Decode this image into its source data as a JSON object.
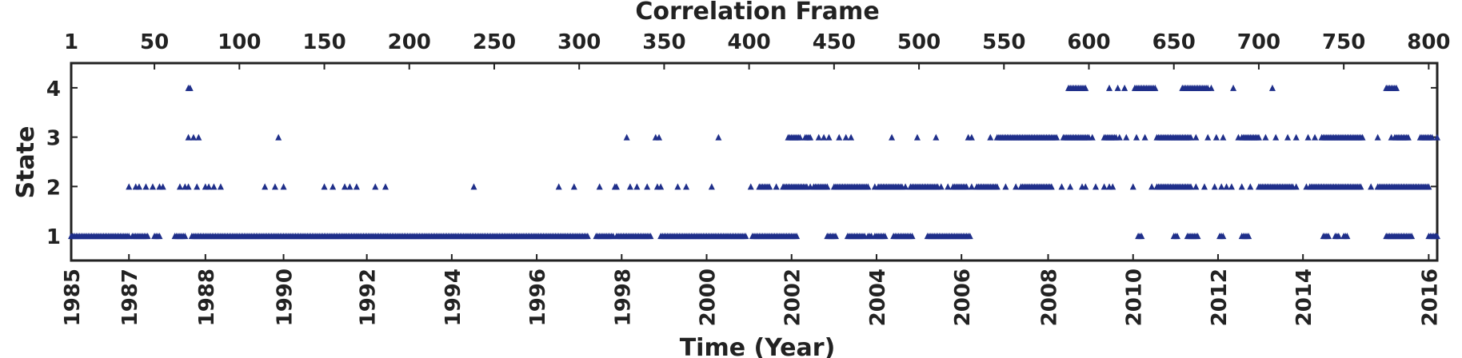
{
  "chart_data": {
    "type": "scatter",
    "xlabel": "Time (Year)",
    "ylabel": "State",
    "x2label": "Correlation Frame",
    "xlim": [
      1,
      805
    ],
    "ylim": [
      0.5,
      4.5
    ],
    "grid": false,
    "marker": "triangle",
    "marker_color": "#1f2f8a",
    "bottom_ticks": [
      {
        "frame": 1,
        "label": "1985"
      },
      {
        "frame": 35,
        "label": "1987"
      },
      {
        "frame": 80,
        "label": "1988"
      },
      {
        "frame": 126,
        "label": "1990"
      },
      {
        "frame": 175,
        "label": "1992"
      },
      {
        "frame": 225,
        "label": "1994"
      },
      {
        "frame": 275,
        "label": "1996"
      },
      {
        "frame": 325,
        "label": "1998"
      },
      {
        "frame": 375,
        "label": "2000"
      },
      {
        "frame": 425,
        "label": "2002"
      },
      {
        "frame": 475,
        "label": "2004"
      },
      {
        "frame": 525,
        "label": "2006"
      },
      {
        "frame": 576,
        "label": "2008"
      },
      {
        "frame": 626,
        "label": "2010"
      },
      {
        "frame": 676,
        "label": "2012"
      },
      {
        "frame": 726,
        "label": "2014"
      },
      {
        "frame": 800,
        "label": "2016"
      }
    ],
    "top_ticks": [
      1,
      50,
      100,
      150,
      200,
      250,
      300,
      350,
      400,
      450,
      500,
      550,
      600,
      650,
      700,
      750,
      800
    ],
    "y_ticks": [
      1,
      2,
      3,
      4
    ],
    "series": [
      {
        "state_1_ranges": [
          [
            1,
            35
          ],
          [
            37,
            46
          ],
          [
            50,
            53
          ],
          [
            62,
            68
          ],
          [
            72,
            76
          ],
          [
            77,
            130
          ],
          [
            130,
            200
          ],
          [
            200,
            305
          ],
          [
            310,
            320
          ],
          [
            322,
            342
          ],
          [
            348,
            398
          ],
          [
            402,
            428
          ],
          [
            446,
            451
          ],
          [
            458,
            468
          ],
          [
            470,
            472
          ],
          [
            474,
            480
          ],
          [
            485,
            496
          ],
          [
            505,
            524
          ],
          [
            522,
            530
          ],
          [
            629,
            631
          ],
          [
            650,
            652
          ],
          [
            658,
            664
          ],
          [
            677,
            679
          ],
          [
            690,
            694
          ],
          [
            738,
            741
          ],
          [
            745,
            747
          ],
          [
            750,
            752
          ],
          [
            775,
            777
          ],
          [
            777,
            790
          ],
          [
            800,
            805
          ]
        ],
        "state_2_points": [
          35,
          39,
          41,
          45,
          49,
          53,
          55,
          65,
          68,
          70,
          75,
          80,
          82,
          85,
          89,
          115,
          121,
          126,
          150,
          155,
          162,
          165,
          169,
          180,
          186,
          238,
          288,
          297,
          312,
          321,
          322,
          330,
          334,
          340,
          346,
          348,
          358,
          363,
          378,
          401,
          410,
          416,
          420,
          425,
          430,
          436,
          439,
          442,
          446,
          458,
          470,
          474,
          478,
          485,
          492,
          495,
          499,
          510,
          513,
          517,
          521,
          528,
          531,
          534,
          540,
          545,
          551,
          557,
          562,
          566,
          571,
          574,
          584,
          589,
          596,
          598,
          604,
          609,
          612,
          614,
          626,
          637,
          643,
          649,
          655,
          659,
          663,
          668,
          674,
          678,
          681,
          684,
          690,
          695,
          701,
          707,
          712,
          718,
          722,
          728,
          733,
          737,
          741,
          749,
          755,
          760,
          766,
          774,
          778,
          786,
          790,
          795,
          800
        ],
        "state_2_ranges": [
          [
            406,
            412
          ],
          [
            420,
            434
          ],
          [
            438,
            445
          ],
          [
            450,
            470
          ],
          [
            476,
            490
          ],
          [
            496,
            511
          ],
          [
            520,
            528
          ],
          [
            534,
            546
          ],
          [
            560,
            578
          ],
          [
            640,
            660
          ],
          [
            700,
            720
          ],
          [
            730,
            760
          ],
          [
            770,
            800
          ]
        ],
        "state_3_points": [
          70,
          73,
          76,
          123,
          328,
          345,
          347,
          382,
          441,
          444,
          447,
          453,
          457,
          460,
          484,
          499,
          510,
          529,
          531,
          542,
          549,
          553,
          560,
          566,
          570,
          575,
          581,
          588,
          590,
          594,
          598,
          602,
          609,
          614,
          618,
          622,
          628,
          633,
          640,
          644,
          652,
          657,
          663,
          670,
          675,
          679,
          688,
          694,
          700,
          704,
          710,
          717,
          722,
          729,
          733,
          742,
          748,
          753,
          761,
          770,
          778,
          784,
          795,
          800,
          805
        ],
        "state_3_ranges": [
          [
            423,
            430
          ],
          [
            433,
            436
          ],
          [
            546,
            580
          ],
          [
            585,
            600
          ],
          [
            610,
            616
          ],
          [
            640,
            660
          ],
          [
            690,
            700
          ],
          [
            737,
            760
          ],
          [
            780,
            788
          ],
          [
            796,
            802
          ]
        ],
        "state_4_points": [
          70,
          71,
          590,
          596,
          612,
          617,
          621,
          635,
          639,
          655,
          659,
          664,
          667,
          672,
          685,
          708,
          778
        ],
        "state_4_ranges": [
          [
            588,
            598
          ],
          [
            627,
            638
          ],
          [
            655,
            670
          ],
          [
            775,
            781
          ]
        ]
      }
    ]
  }
}
